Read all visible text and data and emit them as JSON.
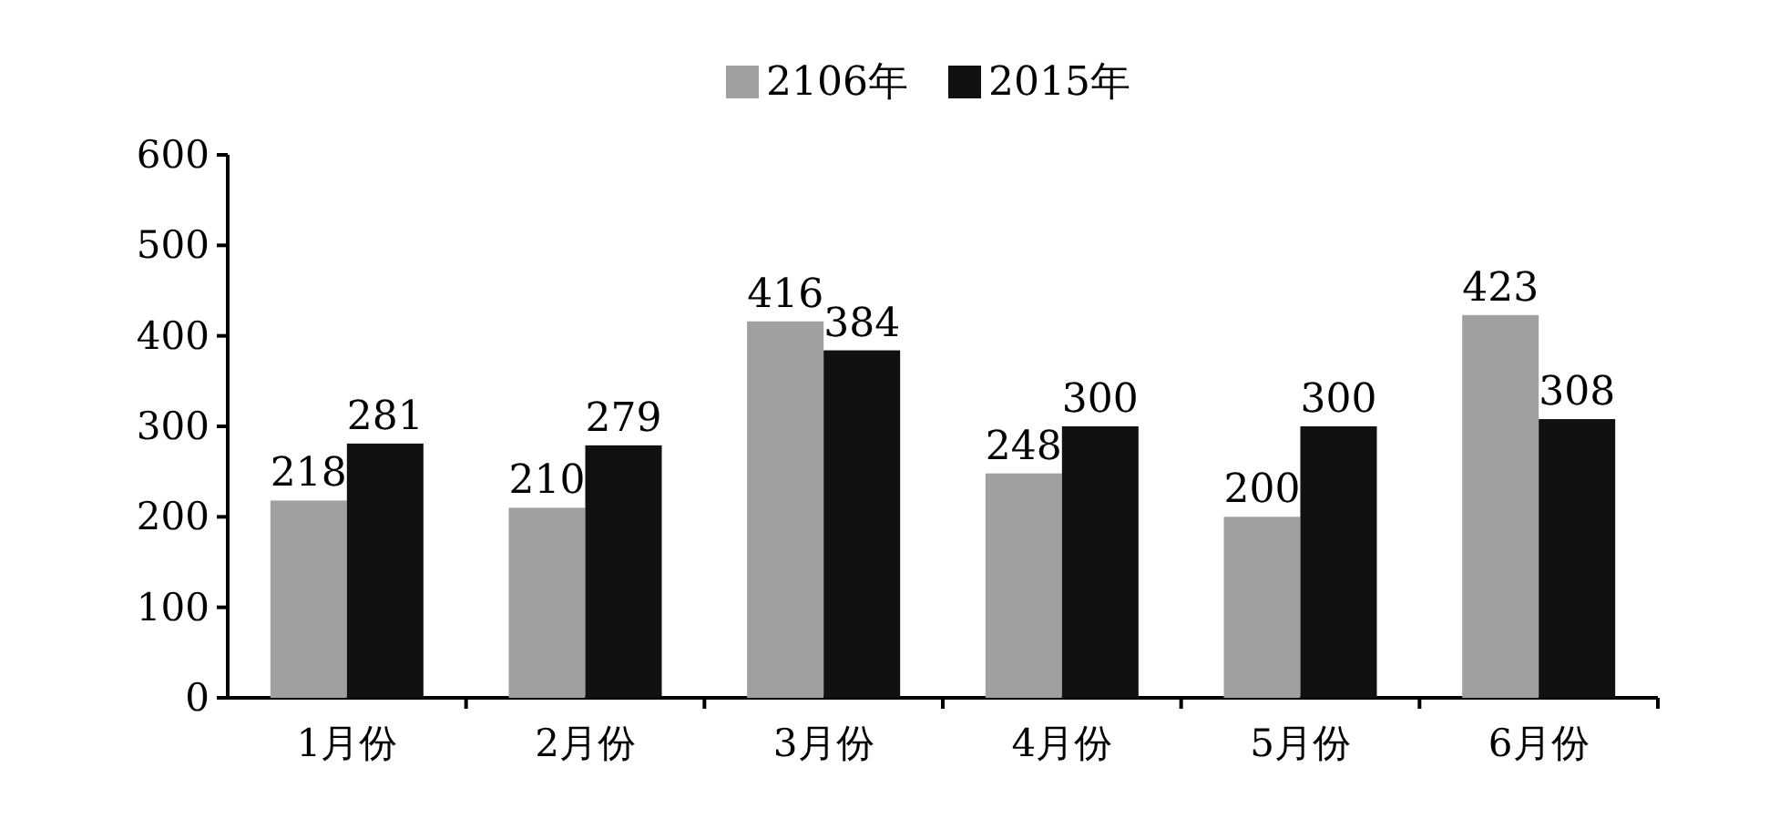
{
  "chart_data": {
    "type": "bar",
    "categories": [
      "1月份",
      "2月份",
      "3月份",
      "4月份",
      "5月份",
      "6月份"
    ],
    "series": [
      {
        "name": "2106年",
        "color": "#a0a0a0",
        "values": [
          218,
          210,
          416,
          248,
          200,
          423
        ]
      },
      {
        "name": "2015年",
        "color": "#111111",
        "values": [
          281,
          279,
          384,
          300,
          300,
          308
        ]
      }
    ],
    "ylim": [
      0,
      600
    ],
    "yticks": [
      0,
      100,
      200,
      300,
      400,
      500,
      600
    ],
    "data_labels": true,
    "legend": "top"
  }
}
